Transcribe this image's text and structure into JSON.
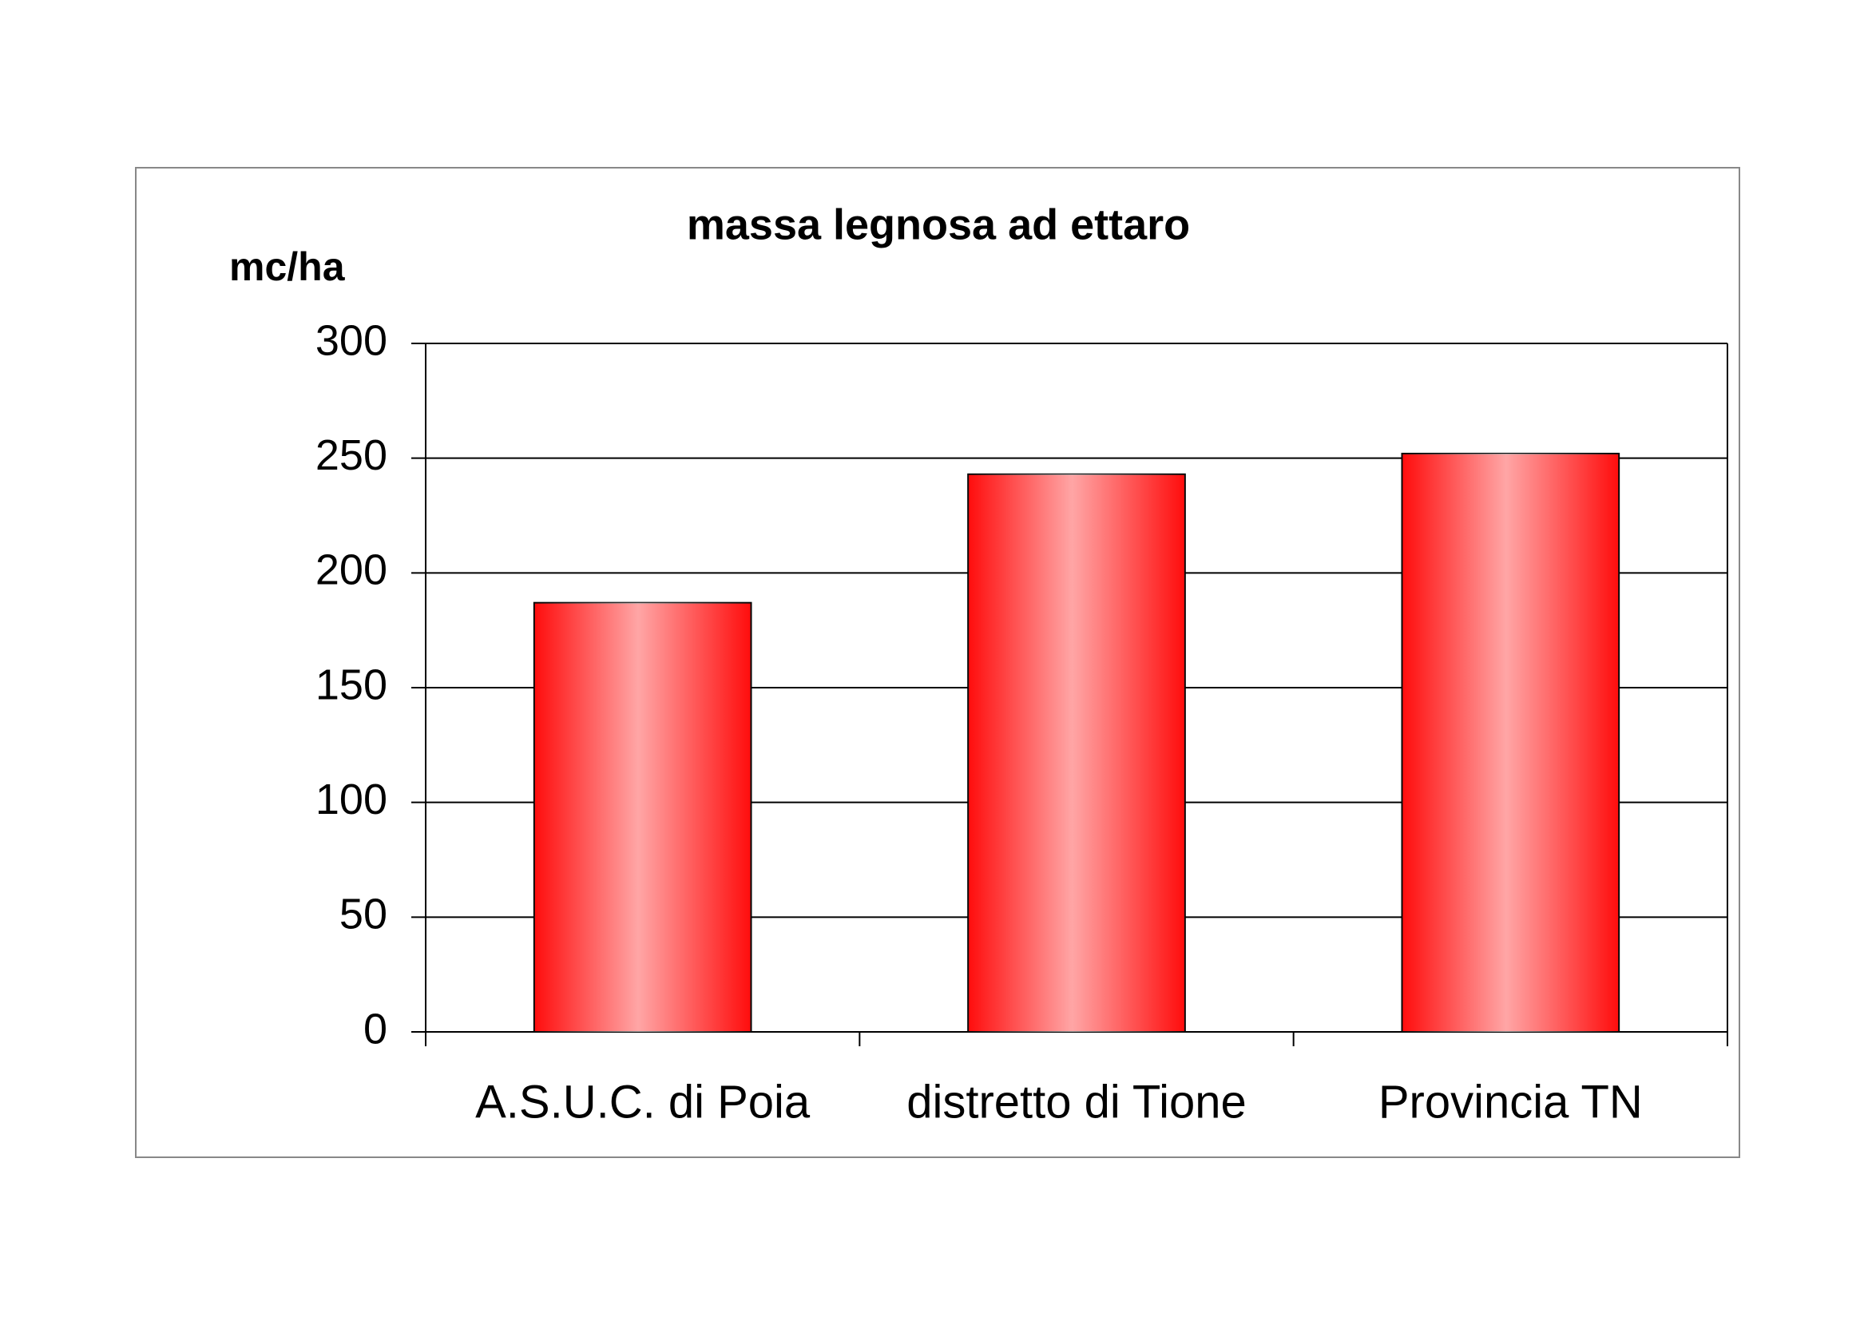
{
  "chart_data": {
    "type": "bar",
    "title": "massa legnosa ad ettaro",
    "y_label": "mc/ha",
    "categories": [
      "A.S.U.C. di Poia",
      "distretto di Tione",
      "Provincia TN"
    ],
    "values": [
      187,
      243,
      252
    ],
    "color": "#ff0000",
    "ylim": [
      0,
      300
    ],
    "yticks": [
      0,
      50,
      100,
      150,
      200,
      250,
      300
    ],
    "grid": true
  }
}
